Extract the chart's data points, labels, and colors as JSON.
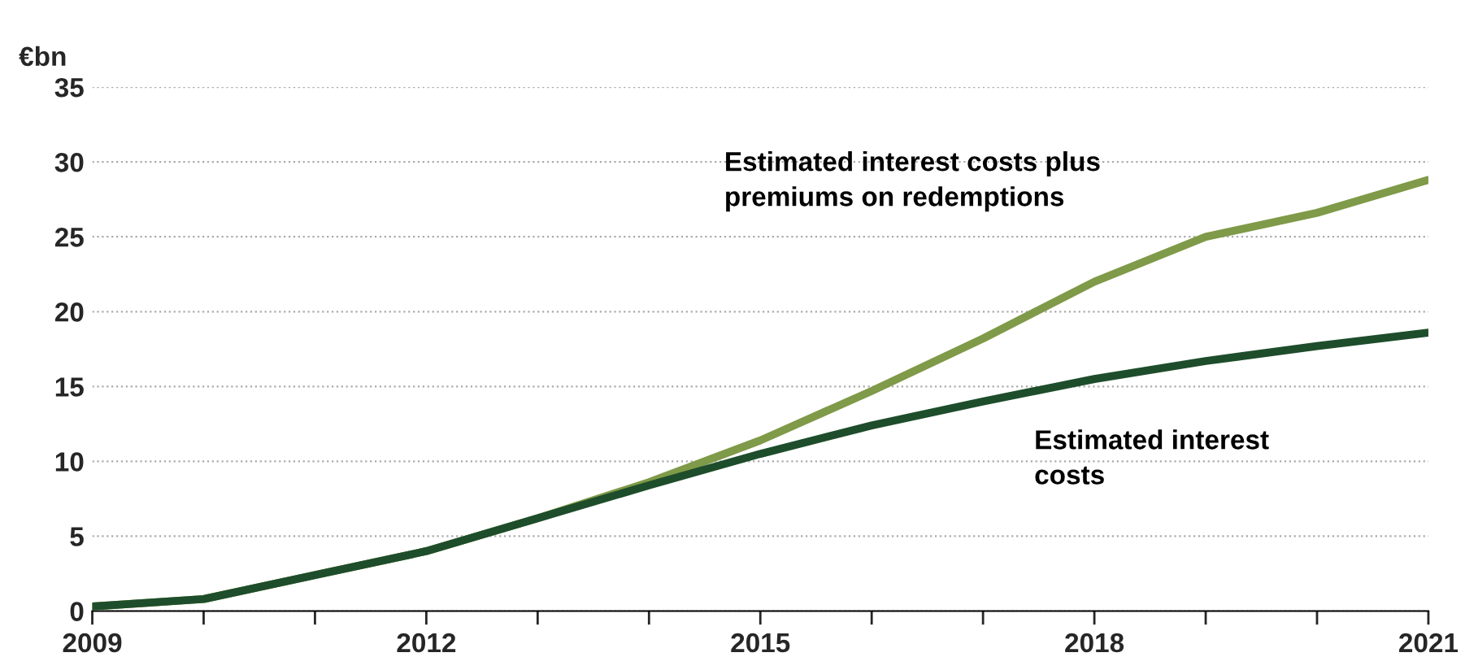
{
  "chart_data": {
    "type": "line",
    "ylabel": "€bn",
    "x": [
      2009,
      2010,
      2011,
      2012,
      2013,
      2014,
      2015,
      2016,
      2017,
      2018,
      2019,
      2020,
      2021
    ],
    "series": [
      {
        "name": "Estimated interest costs plus\npremiums on redemptions",
        "color": "#7f9a48",
        "values": [
          0.3,
          0.8,
          2.4,
          4.0,
          6.2,
          8.6,
          11.4,
          14.7,
          18.2,
          22.0,
          25.0,
          26.6,
          28.8
        ]
      },
      {
        "name": "Estimated interest\ncosts",
        "color": "#1e4d2b",
        "values": [
          0.3,
          0.8,
          2.4,
          4.0,
          6.2,
          8.4,
          10.5,
          12.4,
          14.0,
          15.5,
          16.7,
          17.7,
          18.6
        ]
      }
    ],
    "xlim": [
      2009,
      2021
    ],
    "xticks": [
      2009,
      {
        "value": 2010,
        "label": null
      },
      {
        "value": 2011,
        "label": null
      },
      2012,
      {
        "value": 2013,
        "label": null
      },
      {
        "value": 2014,
        "label": null
      },
      2015,
      {
        "value": 2016,
        "label": null
      },
      {
        "value": 2017,
        "label": null
      },
      2018,
      {
        "value": 2019,
        "label": null
      },
      {
        "value": 2020,
        "label": null
      },
      2021
    ],
    "ylim": [
      0,
      35
    ],
    "yticks": [
      0,
      5,
      10,
      15,
      20,
      25,
      30,
      35
    ],
    "grid": "y",
    "legend": false,
    "marker": "none",
    "line_style": "solid"
  }
}
